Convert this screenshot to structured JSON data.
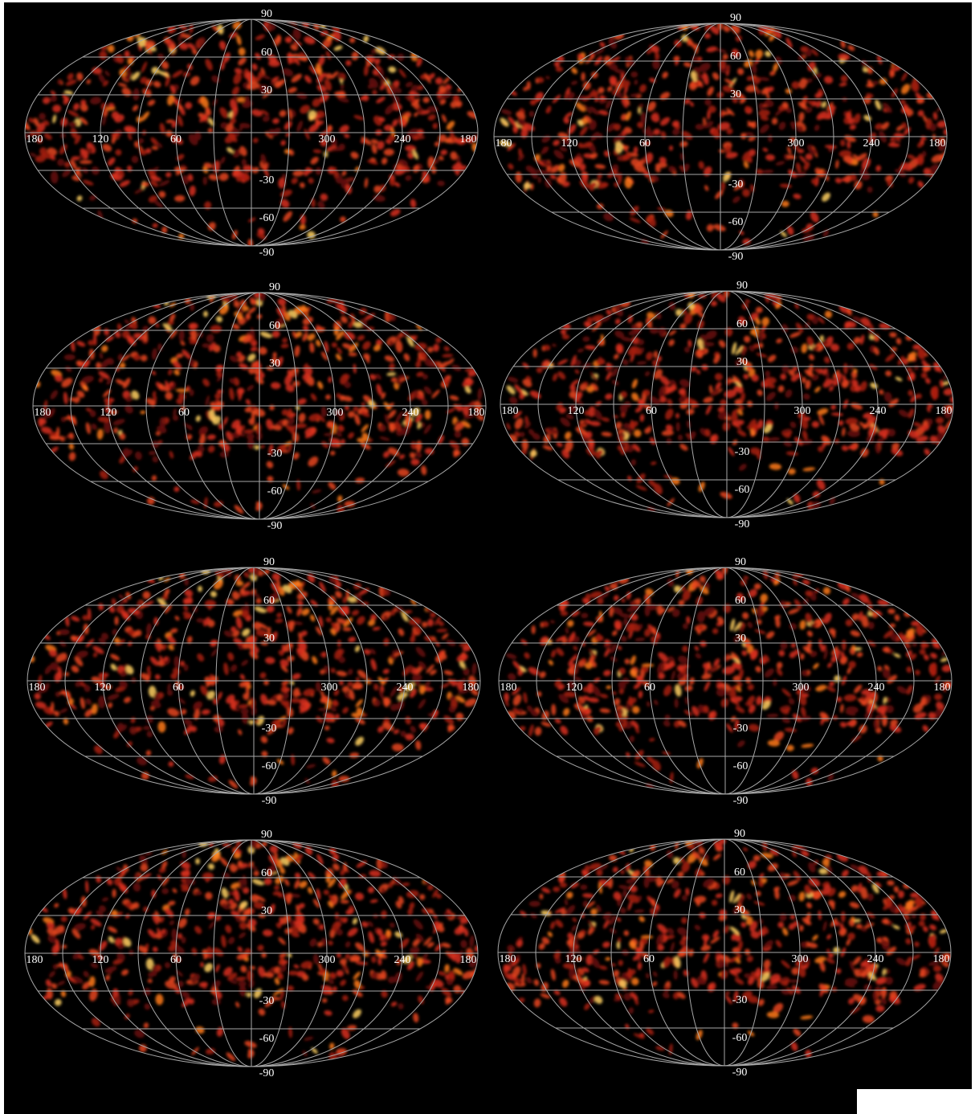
{
  "grid_labels": {
    "latitudes": [
      "90",
      "60",
      "30",
      "-30",
      "-60",
      "-90"
    ],
    "longitudes": [
      "180",
      "120",
      "60",
      "300",
      "240",
      "180"
    ]
  }
}
